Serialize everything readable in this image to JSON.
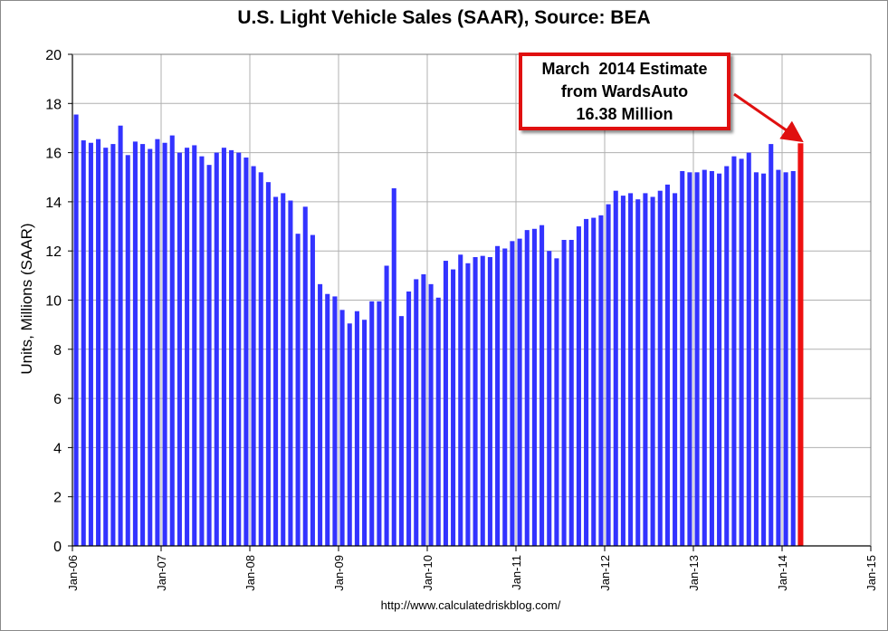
{
  "chart_data": {
    "type": "bar",
    "title": "U.S. Light Vehicle Sales (SAAR), Source: BEA",
    "ylabel": "Units, Millions (SAAR)",
    "xlabel": "",
    "ylim": [
      0,
      20
    ],
    "yticks": [
      0,
      2,
      4,
      6,
      8,
      10,
      12,
      14,
      16,
      18,
      20
    ],
    "xlim": [
      "Jan-06",
      "Jan-15"
    ],
    "xticks": [
      "Jan-06",
      "Jan-07",
      "Jan-08",
      "Jan-09",
      "Jan-10",
      "Jan-11",
      "Jan-12",
      "Jan-13",
      "Jan-14",
      "Jan-15"
    ],
    "grid": true,
    "bar_color": "#3333ff",
    "highlight_color": "#ee1111",
    "source": "http://www.calculatedriskblog.com/",
    "series": [
      {
        "start": "2006-01",
        "end": "2014-02",
        "values": [
          17.55,
          16.5,
          16.4,
          16.55,
          16.2,
          16.35,
          17.1,
          15.9,
          16.45,
          16.35,
          16.15,
          16.55,
          16.4,
          16.7,
          16.0,
          16.2,
          16.3,
          15.85,
          15.5,
          16.0,
          16.2,
          16.1,
          16.0,
          15.8,
          15.45,
          15.2,
          14.8,
          14.2,
          14.35,
          14.05,
          12.7,
          13.8,
          12.65,
          10.65,
          10.25,
          10.15,
          9.6,
          9.05,
          9.55,
          9.2,
          9.95,
          9.95,
          11.4,
          14.55,
          9.35,
          10.35,
          10.85,
          11.05,
          10.65,
          10.1,
          11.6,
          11.25,
          11.85,
          11.5,
          11.75,
          11.8,
          11.75,
          12.2,
          12.1,
          12.4,
          12.5,
          12.85,
          12.9,
          13.05,
          12.0,
          11.7,
          12.45,
          12.45,
          13.0,
          13.3,
          13.35,
          13.45,
          13.9,
          14.45,
          14.25,
          14.35,
          14.1,
          14.35,
          14.2,
          14.45,
          14.7,
          14.35,
          15.25,
          15.2,
          15.2,
          15.3,
          15.25,
          15.15,
          15.45,
          15.85,
          15.75,
          16.0,
          15.2,
          15.15,
          16.35,
          15.3,
          15.2,
          15.25
        ]
      },
      {
        "date": "2014-03",
        "values": [
          16.38
        ]
      }
    ],
    "annotation": {
      "lines": [
        "March  2014 Estimate",
        "from WardsAuto",
        "16.38 Million"
      ],
      "border_color": "#e01010"
    }
  }
}
